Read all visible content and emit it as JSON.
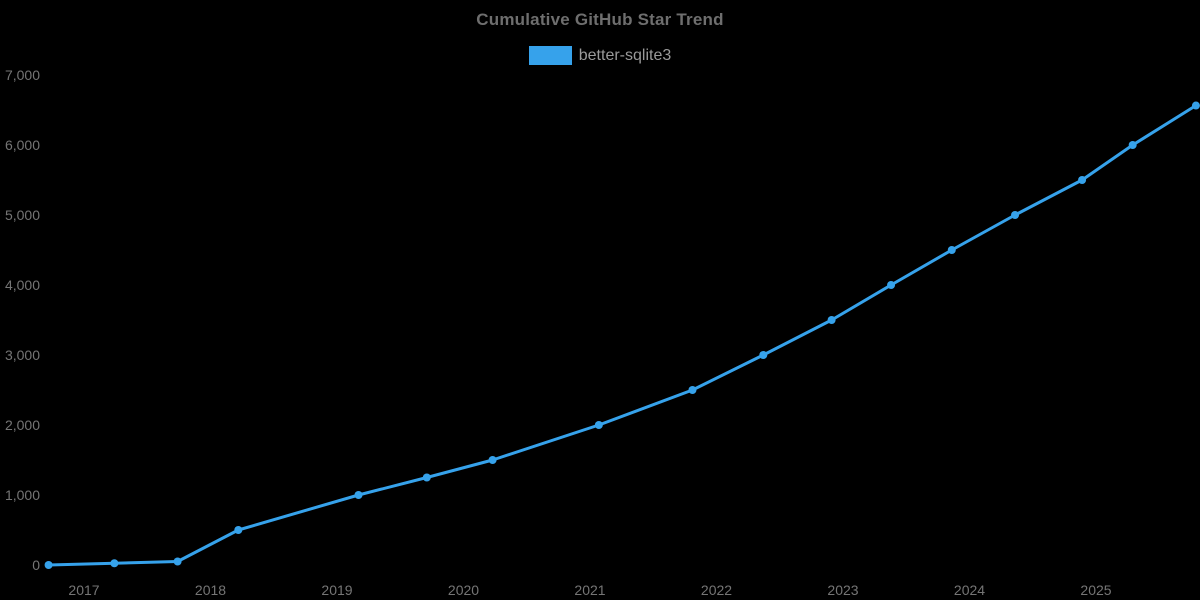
{
  "page": {
    "background_color": "#000000",
    "text_color": "#757575"
  },
  "chart_data": {
    "type": "line",
    "title": "Cumulative GitHub Star Trend",
    "xlabel": "",
    "ylabel": "",
    "grid": false,
    "legend_position": "top-center",
    "series": [
      {
        "name": "better-sqlite3",
        "color": "#36A2EB",
        "point_radius": 4,
        "line_width": 3,
        "points": [
          {
            "x": 2016.72,
            "y": 0
          },
          {
            "x": 2017.24,
            "y": 25
          },
          {
            "x": 2017.74,
            "y": 50
          },
          {
            "x": 2018.22,
            "y": 500
          },
          {
            "x": 2019.17,
            "y": 1000
          },
          {
            "x": 2019.71,
            "y": 1250
          },
          {
            "x": 2020.23,
            "y": 1500
          },
          {
            "x": 2021.07,
            "y": 2000
          },
          {
            "x": 2021.81,
            "y": 2500
          },
          {
            "x": 2022.37,
            "y": 3000
          },
          {
            "x": 2022.91,
            "y": 3500
          },
          {
            "x": 2023.38,
            "y": 4000
          },
          {
            "x": 2023.86,
            "y": 4500
          },
          {
            "x": 2024.36,
            "y": 5000
          },
          {
            "x": 2024.89,
            "y": 5500
          },
          {
            "x": 2025.29,
            "y": 6000
          },
          {
            "x": 2025.79,
            "y": 6564
          }
        ]
      }
    ],
    "x_axis": {
      "min": 2016.72,
      "max": 2025.85,
      "ticks": [
        {
          "value": 2017,
          "label": "2017"
        },
        {
          "value": 2018,
          "label": "2018"
        },
        {
          "value": 2019,
          "label": "2019"
        },
        {
          "value": 2020,
          "label": "2020"
        },
        {
          "value": 2021,
          "label": "2021"
        },
        {
          "value": 2022,
          "label": "2022"
        },
        {
          "value": 2023,
          "label": "2023"
        },
        {
          "value": 2024,
          "label": "2024"
        },
        {
          "value": 2025,
          "label": "2025"
        }
      ]
    },
    "y_axis": {
      "min": 0,
      "max": 7000,
      "ticks": [
        {
          "value": 0,
          "label": "0"
        },
        {
          "value": 1000,
          "label": "1,000"
        },
        {
          "value": 2000,
          "label": "2,000"
        },
        {
          "value": 3000,
          "label": "3,000"
        },
        {
          "value": 4000,
          "label": "4,000"
        },
        {
          "value": 5000,
          "label": "5,000"
        },
        {
          "value": 6000,
          "label": "6,000"
        },
        {
          "value": 7000,
          "label": "7,000"
        }
      ]
    }
  }
}
